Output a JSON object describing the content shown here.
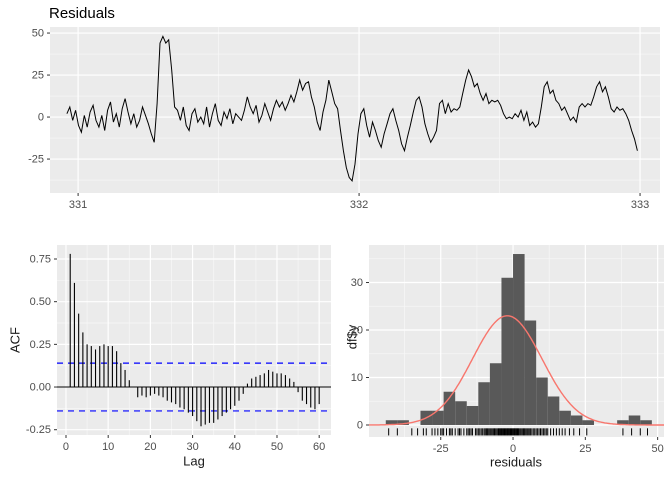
{
  "title": "Residuals",
  "palette": {
    "panel_bg": "#EBEBEB",
    "grid_major": "#FFFFFF",
    "grid_minor": "#F7F7F7",
    "series_line": "#000000",
    "acf_bar": "#000000",
    "zero_line": "#000000",
    "conf_line": "#0000FF",
    "hist_bar": "#595959",
    "curve": "#F8766D",
    "tick_text": "#4D4D4D",
    "tick_mark": "#333333"
  },
  "chart_data": [
    {
      "type": "line",
      "title": "Residuals",
      "xlabel": "",
      "ylabel": "",
      "x_ticks": [
        {
          "v": 331,
          "label": "331"
        },
        {
          "v": 332,
          "label": "332"
        },
        {
          "v": 333,
          "label": "333"
        }
      ],
      "y_ticks": [
        {
          "v": 50,
          "label": "50"
        },
        {
          "v": 25,
          "label": "25"
        },
        {
          "v": 0,
          "label": "0"
        },
        {
          "v": -25,
          "label": "-25"
        }
      ],
      "xlim": [
        330.9,
        333.071
      ],
      "ylim": [
        -45.2,
        53.6
      ],
      "x_start": 330.96,
      "x_step": 0.01036,
      "values": [
        2,
        6,
        -2,
        4,
        -5,
        -9,
        1,
        -6,
        3,
        7,
        -2,
        -6,
        1,
        -8,
        4,
        9,
        -3,
        2,
        -6,
        5,
        11,
        3,
        -4,
        2,
        -6,
        -2,
        6,
        1,
        -4,
        -10,
        -15,
        8,
        44,
        48,
        44,
        46,
        28,
        6,
        4,
        -2,
        6,
        -5,
        -8,
        2,
        5,
        -3,
        0,
        -4,
        6,
        -6,
        2,
        8,
        -2,
        -5,
        3,
        -1,
        5,
        -4,
        2,
        0,
        -2,
        4,
        12,
        6,
        2,
        7,
        -3,
        1,
        8,
        3,
        -2,
        5,
        10,
        6,
        9,
        4,
        8,
        13,
        9,
        15,
        22,
        16,
        20,
        21,
        12,
        6,
        -3,
        -8,
        3,
        10,
        22,
        15,
        8,
        5,
        -8,
        -20,
        -30,
        -36,
        -38,
        -28,
        -10,
        2,
        5,
        -5,
        -12,
        -3,
        -8,
        -14,
        -18,
        -10,
        -4,
        2,
        5,
        -2,
        -8,
        -16,
        -20,
        -12,
        -5,
        3,
        10,
        12,
        6,
        -4,
        -10,
        -15,
        -12,
        -8,
        8,
        10,
        2,
        8,
        3,
        5,
        4,
        6,
        14,
        22,
        28,
        24,
        18,
        20,
        14,
        10,
        14,
        8,
        10,
        9,
        10,
        7,
        2,
        -1,
        0,
        -1,
        2,
        0,
        4,
        -2,
        3,
        -5,
        -3,
        -6,
        -4,
        6,
        18,
        21,
        14,
        16,
        10,
        8,
        4,
        6,
        2,
        -2,
        0,
        -3,
        6,
        8,
        6,
        8,
        7,
        12,
        18,
        21,
        15,
        18,
        12,
        5,
        3,
        6,
        4,
        5,
        2,
        -2,
        -8,
        -13,
        -20
      ]
    },
    {
      "type": "acf",
      "title": "",
      "xlabel": "Lag",
      "ylabel": "ACF",
      "x_ticks": [
        {
          "v": 0,
          "label": "0"
        },
        {
          "v": 10,
          "label": "10"
        },
        {
          "v": 20,
          "label": "20"
        },
        {
          "v": 30,
          "label": "30"
        },
        {
          "v": 40,
          "label": "40"
        },
        {
          "v": 50,
          "label": "50"
        },
        {
          "v": 60,
          "label": "60"
        }
      ],
      "y_ticks": [
        {
          "v": 0.75,
          "label": "0.75"
        },
        {
          "v": 0.5,
          "label": "0.50"
        },
        {
          "v": 0.25,
          "label": "0.25"
        },
        {
          "v": 0,
          "label": "0.00"
        },
        {
          "v": -0.25,
          "label": "-0.25"
        }
      ],
      "xlim": [
        -2.13,
        62.8
      ],
      "ylim": [
        -0.281,
        0.832
      ],
      "conf_bounds": [
        0.14,
        -0.14
      ],
      "lag_start": 1,
      "values": [
        0.78,
        0.61,
        0.43,
        0.32,
        0.25,
        0.24,
        0.22,
        0.24,
        0.25,
        0.24,
        0.24,
        0.21,
        0.14,
        0.1,
        0.04,
        0.0,
        -0.06,
        -0.05,
        -0.06,
        -0.05,
        -0.04,
        -0.05,
        -0.06,
        -0.08,
        -0.09,
        -0.1,
        -0.12,
        -0.13,
        -0.15,
        -0.17,
        -0.2,
        -0.23,
        -0.22,
        -0.21,
        -0.21,
        -0.19,
        -0.17,
        -0.15,
        -0.13,
        -0.11,
        -0.08,
        -0.04,
        0.02,
        0.05,
        0.06,
        0.07,
        0.08,
        0.1,
        0.09,
        0.08,
        0.08,
        0.07,
        0.05,
        0.03,
        -0.03,
        -0.08,
        -0.1,
        -0.12,
        -0.13,
        -0.1
      ]
    },
    {
      "type": "histogram",
      "title": "",
      "xlabel": "residuals",
      "ylabel": "df$y",
      "x_ticks": [
        {
          "v": -25,
          "label": "-25"
        },
        {
          "v": 0,
          "label": "0"
        },
        {
          "v": 25,
          "label": "25"
        },
        {
          "v": 50,
          "label": "50"
        }
      ],
      "y_ticks": [
        {
          "v": 0,
          "label": "0"
        },
        {
          "v": 10,
          "label": "10"
        },
        {
          "v": 20,
          "label": "20"
        },
        {
          "v": 30,
          "label": "30"
        }
      ],
      "xlim": [
        -49.8,
        52.2
      ],
      "ylim": [
        -2.53,
        37.9
      ],
      "bin_start": -44,
      "bin_width": 4,
      "counts": [
        1,
        1,
        0,
        3,
        3,
        7,
        5,
        4,
        9,
        13,
        31,
        36,
        22,
        10,
        6,
        3,
        2,
        1,
        0,
        0,
        1,
        2,
        1
      ],
      "normal_curve": {
        "mean": -2,
        "sd": 12,
        "peak": 23
      },
      "rug": [
        -43,
        -40,
        -35,
        -33,
        -31,
        -30,
        -28,
        -27,
        -26,
        -25,
        -24.5,
        -24,
        -23,
        -22,
        -21.5,
        -21,
        -20,
        -19,
        -18.5,
        -18,
        -17,
        -16,
        -15.5,
        -15,
        -14.5,
        -14,
        -13,
        -12.5,
        -12,
        -11.5,
        -11,
        -10.5,
        -10,
        -9.6,
        -9.2,
        -8.8,
        -8.4,
        -8,
        -7.6,
        -7.2,
        -6.8,
        -6.4,
        -6,
        -5.6,
        -5.2,
        -4.9,
        -4.6,
        -4.3,
        -4,
        -3.7,
        -3.4,
        -3.1,
        -2.8,
        -2.5,
        -2.2,
        -1.9,
        -1.6,
        -1.3,
        -1,
        -0.7,
        -0.4,
        -0.1,
        0.2,
        0.5,
        0.8,
        1.1,
        1.4,
        1.7,
        2,
        2.4,
        2.8,
        3.2,
        3.6,
        4,
        4.4,
        4.8,
        5.2,
        5.6,
        6,
        6.5,
        7,
        7.5,
        8,
        8.5,
        9,
        9.5,
        10,
        10.5,
        11,
        11.5,
        12,
        13,
        14,
        15,
        16,
        17,
        18,
        19.5,
        21,
        23,
        25.5,
        38,
        41,
        44,
        46.5
      ]
    }
  ]
}
